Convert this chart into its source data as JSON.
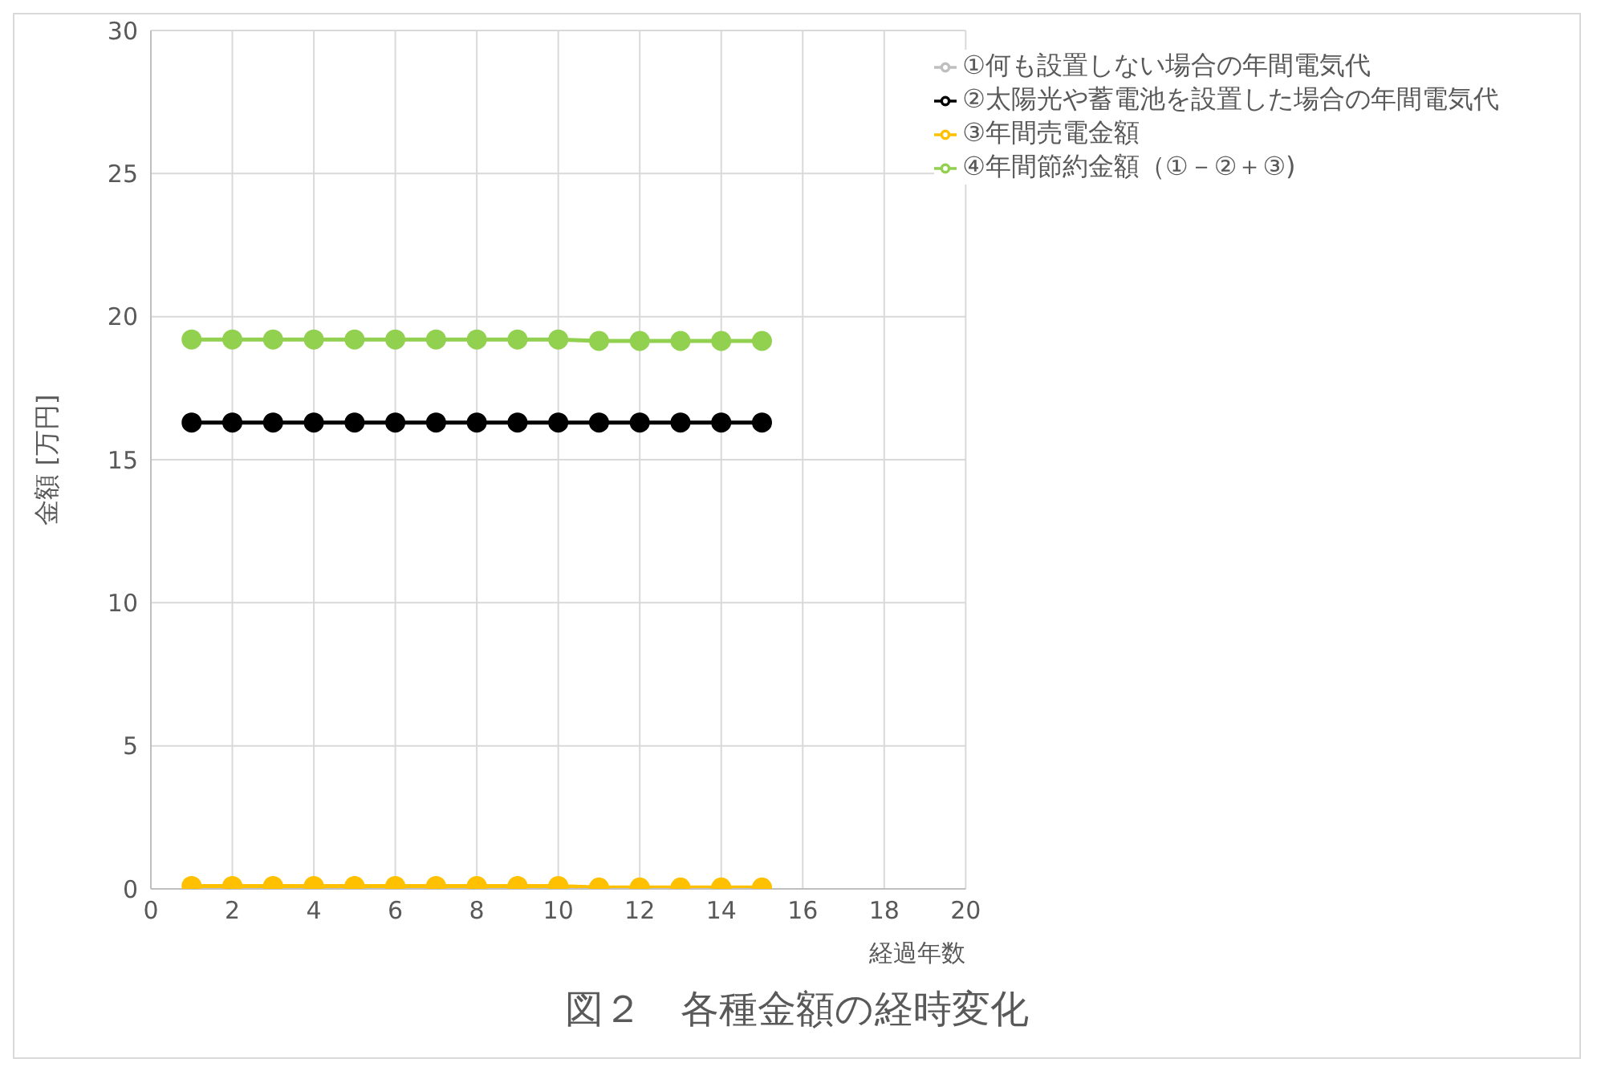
{
  "chart_data": {
    "type": "line",
    "title": "図２　各種金額の経時変化",
    "xlabel": "経過年数",
    "ylabel": "金額 [万円]",
    "x": [
      1,
      2,
      3,
      4,
      5,
      6,
      7,
      8,
      9,
      10,
      11,
      12,
      13,
      14,
      15
    ],
    "series": [
      {
        "name": "①何も設置しない場合の年間電気代",
        "color": "#bfbfbf",
        "values": [
          null,
          null,
          null,
          null,
          null,
          null,
          null,
          null,
          null,
          null,
          null,
          null,
          null,
          null,
          null
        ]
      },
      {
        "name": "②太陽光や蓄電池を設置した場合の年間電気代",
        "color": "#000000",
        "values": [
          16.3,
          16.3,
          16.3,
          16.3,
          16.3,
          16.3,
          16.3,
          16.3,
          16.3,
          16.3,
          16.3,
          16.3,
          16.3,
          16.3,
          16.3
        ]
      },
      {
        "name": "③年間売電金額",
        "color": "#ffc000",
        "values": [
          0.1,
          0.1,
          0.1,
          0.1,
          0.1,
          0.1,
          0.1,
          0.1,
          0.1,
          0.1,
          0.05,
          0.05,
          0.05,
          0.05,
          0.05
        ]
      },
      {
        "name": "④年間節約金額（①－②＋③)",
        "color": "#92d050",
        "values": [
          19.2,
          19.2,
          19.2,
          19.2,
          19.2,
          19.2,
          19.2,
          19.2,
          19.2,
          19.2,
          19.15,
          19.15,
          19.15,
          19.15,
          19.15
        ]
      }
    ],
    "xlim": [
      0,
      20
    ],
    "xticks": [
      0,
      2,
      4,
      6,
      8,
      10,
      12,
      14,
      16,
      18,
      20
    ],
    "ylim": [
      0,
      30
    ],
    "yticks": [
      0,
      5,
      10,
      15,
      20,
      25,
      30
    ],
    "grid": true,
    "legend": "top right",
    "marker": "circle",
    "line_style": "solid"
  }
}
